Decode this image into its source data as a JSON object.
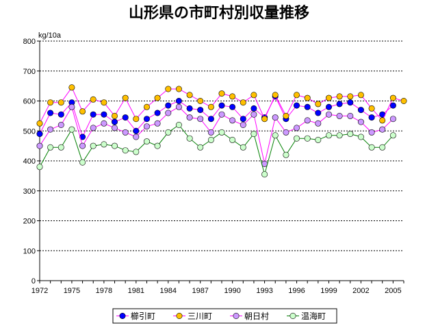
{
  "chart_data": {
    "type": "line",
    "title": "山形県の市町村別収量推移",
    "ylabel": "kg/10a",
    "xlabel": "",
    "ylim": [
      0,
      800
    ],
    "yticks": [
      0,
      100,
      200,
      300,
      400,
      500,
      600,
      700,
      800
    ],
    "xtick_labels": [
      "1972",
      "1975",
      "1978",
      "1981",
      "1984",
      "1987",
      "1990",
      "1993",
      "1996",
      "1999",
      "2002",
      "2005"
    ],
    "x": [
      1972,
      1973,
      1974,
      1975,
      1976,
      1977,
      1978,
      1979,
      1980,
      1981,
      1982,
      1983,
      1984,
      1985,
      1986,
      1987,
      1988,
      1989,
      1990,
      1991,
      1992,
      1993,
      1994,
      1995,
      1996,
      1997,
      1998,
      1999,
      2000,
      2001,
      2002,
      2003,
      2004,
      2005,
      2006
    ],
    "grid": "horizontal dashed",
    "legend_position": "bottom",
    "series": [
      {
        "name": "櫛引町",
        "line_color": "#ff00ff",
        "marker_fill": "#0000ff",
        "values": [
          490,
          560,
          555,
          595,
          480,
          555,
          555,
          530,
          545,
          500,
          540,
          560,
          585,
          600,
          575,
          570,
          540,
          585,
          580,
          540,
          575,
          545,
          615,
          540,
          585,
          580,
          560,
          580,
          590,
          595,
          570,
          545,
          555,
          585,
          null
        ]
      },
      {
        "name": "三川町",
        "line_color": "#ff00ff",
        "marker_fill": "#ffc000",
        "values": [
          525,
          595,
          595,
          645,
          565,
          605,
          595,
          550,
          610,
          540,
          580,
          610,
          640,
          640,
          620,
          600,
          580,
          625,
          615,
          595,
          620,
          540,
          620,
          550,
          620,
          610,
          590,
          610,
          615,
          615,
          620,
          575,
          535,
          610,
          600
        ]
      },
      {
        "name": "朝日村",
        "line_color": "#ff00ff",
        "marker_fill": "#cc99ff",
        "values": [
          450,
          505,
          520,
          580,
          450,
          510,
          525,
          510,
          495,
          480,
          515,
          525,
          560,
          580,
          545,
          540,
          495,
          555,
          535,
          520,
          555,
          390,
          545,
          495,
          510,
          535,
          525,
          555,
          550,
          550,
          530,
          495,
          505,
          540,
          null
        ]
      },
      {
        "name": "温海町",
        "line_color": "#008000",
        "marker_fill": "#ccffcc",
        "values": [
          380,
          445,
          445,
          505,
          395,
          450,
          455,
          450,
          435,
          430,
          465,
          450,
          495,
          520,
          475,
          445,
          470,
          495,
          470,
          445,
          490,
          355,
          485,
          420,
          475,
          475,
          470,
          485,
          485,
          490,
          480,
          445,
          445,
          485,
          null
        ]
      }
    ]
  }
}
